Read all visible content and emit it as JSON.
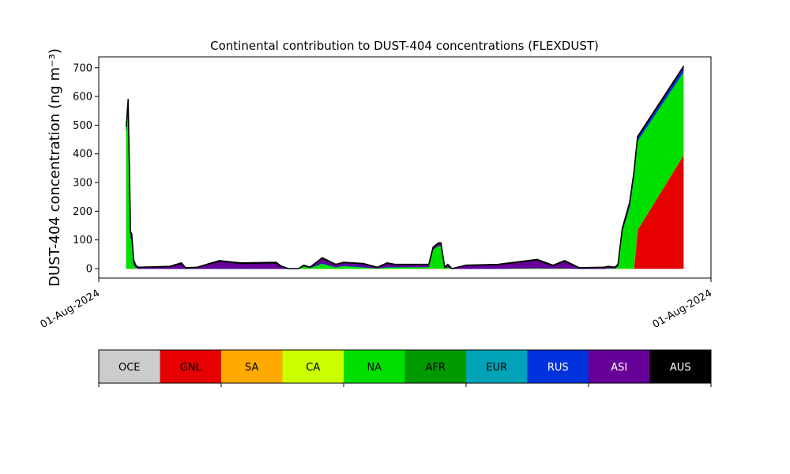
{
  "chart_data": {
    "type": "stacked_area",
    "title": "Continental contribution to DUST-404 concentrations (FLEXDUST)",
    "y_label": "DUST-404 concentration (ng m⁻³)",
    "xlim": [
      0,
      100
    ],
    "xticks": [
      {
        "value": 0,
        "label": "01-Aug-2024"
      },
      {
        "value": 100,
        "label": "01-Aug-2024"
      }
    ],
    "ylim": [
      -33,
      738
    ],
    "yticks": [
      0,
      100,
      200,
      300,
      400,
      500,
      600,
      700
    ],
    "x": [
      4.5,
      4.8,
      5.2,
      5.4,
      5.7,
      6.1,
      6.5,
      11.6,
      13.5,
      14.2,
      16.1,
      19.7,
      23.2,
      29.0,
      29.7,
      31.0,
      32.6,
      33.5,
      34.5,
      36.5,
      38.7,
      40.0,
      43.2,
      45.5,
      47.1,
      48.4,
      53.9,
      54.6,
      55.5,
      55.9,
      56.5,
      57.0,
      57.7,
      60.0,
      65.2,
      71.6,
      74.2,
      76.1,
      78.5,
      82.6,
      83.2,
      84.3,
      84.8,
      85.5,
      86.7,
      87.4,
      88.0,
      95.5
    ],
    "series": [
      {
        "name": "OCE",
        "color": "#cccccc",
        "values": [
          0,
          0,
          0,
          0,
          0,
          0,
          0,
          0,
          0,
          0,
          0,
          0,
          0,
          0,
          0,
          0,
          0,
          0,
          0,
          0,
          0,
          0,
          0,
          0,
          0,
          0,
          0,
          0,
          0,
          0,
          0,
          0,
          0,
          0,
          0,
          0,
          0,
          0,
          0,
          0,
          0,
          0,
          0,
          0,
          0,
          0,
          0,
          0
        ]
      },
      {
        "name": "GNL",
        "color": "#e60000",
        "values": [
          0,
          0,
          0,
          0,
          0,
          0,
          0,
          0,
          0,
          0,
          0,
          0,
          0,
          0,
          0,
          0,
          0,
          0,
          0,
          0,
          0,
          0,
          0,
          0,
          0,
          0,
          1,
          2,
          0,
          0,
          0,
          0,
          0,
          0,
          0,
          0,
          0,
          0,
          0,
          0,
          0,
          0,
          0,
          0,
          0,
          0,
          135,
          395
        ]
      },
      {
        "name": "SA",
        "color": "#ffaa00",
        "values": [
          0,
          0,
          0,
          0,
          0,
          0,
          0,
          0,
          0,
          0,
          0,
          0,
          0,
          0,
          0,
          0,
          0,
          0,
          0,
          0,
          0,
          0,
          0,
          0,
          0,
          0,
          0,
          0,
          0,
          0,
          0,
          0,
          0,
          0,
          0,
          0,
          0,
          0,
          0,
          0,
          0,
          0,
          0,
          0,
          0,
          0,
          0,
          0
        ]
      },
      {
        "name": "CA",
        "color": "#ccff00",
        "values": [
          0,
          0,
          0,
          0,
          0,
          0,
          0,
          0,
          0,
          0,
          0,
          0,
          0,
          0,
          0,
          0,
          0,
          0,
          0,
          0,
          0,
          0,
          0,
          0,
          0,
          0,
          0,
          0,
          0,
          0,
          0,
          0,
          0,
          0,
          0,
          0,
          0,
          0,
          0,
          0,
          0,
          0,
          0,
          0,
          0,
          0,
          0,
          0
        ]
      },
      {
        "name": "NA",
        "color": "#00e000",
        "values": [
          480,
          560,
          110,
          100,
          15,
          3,
          0,
          0,
          0,
          0,
          0,
          0,
          0,
          0,
          0,
          0,
          0,
          8,
          3,
          18,
          5,
          10,
          5,
          1,
          5,
          5,
          5,
          65,
          80,
          80,
          2,
          5,
          0,
          0,
          0,
          2,
          1,
          1,
          0,
          0,
          2,
          1,
          8,
          130,
          215,
          318,
          310,
          290
        ]
      },
      {
        "name": "AFR",
        "color": "#009900",
        "values": [
          0,
          0,
          0,
          0,
          0,
          0,
          0,
          0,
          0,
          0,
          0,
          0,
          0,
          0,
          0,
          0,
          0,
          0,
          0,
          0,
          0,
          0,
          0,
          0,
          0,
          0,
          0,
          0,
          0,
          0,
          0,
          0,
          0,
          0,
          0,
          0,
          0,
          0,
          0,
          0,
          0,
          0,
          0,
          0,
          0,
          0,
          0,
          0
        ]
      },
      {
        "name": "EUR",
        "color": "#00a3b8",
        "values": [
          0,
          0,
          0,
          0,
          0,
          0,
          0,
          0,
          0,
          0,
          0,
          0,
          0,
          0,
          0,
          0,
          0,
          0,
          0,
          0,
          0,
          0,
          0,
          0,
          0,
          0,
          0,
          0,
          0,
          0,
          0,
          0,
          0,
          0,
          0,
          0,
          0,
          0,
          0,
          0,
          0,
          0,
          0,
          0,
          0,
          0,
          0,
          0
        ]
      },
      {
        "name": "RUS",
        "color": "#0033dd",
        "values": [
          5,
          10,
          0,
          0,
          0,
          0,
          0,
          0,
          0,
          0,
          0,
          0,
          0,
          0,
          0,
          0,
          0,
          0,
          0,
          2,
          1,
          1,
          2,
          0,
          2,
          2,
          0,
          0,
          0,
          0,
          0,
          0,
          0,
          0,
          0,
          0,
          0,
          0,
          0,
          0,
          0,
          0,
          0,
          3,
          5,
          7,
          8,
          12
        ]
      },
      {
        "name": "ASI",
        "color": "#660099",
        "values": [
          10,
          15,
          15,
          15,
          12,
          6,
          4,
          7,
          18,
          2,
          4,
          26,
          18,
          20,
          8,
          0,
          0,
          3,
          1,
          16,
          8,
          10,
          10,
          3,
          12,
          7,
          8,
          6,
          8,
          8,
          2,
          9,
          0,
          11,
          14,
          28,
          10,
          25,
          2,
          4,
          5,
          3,
          5,
          5,
          8,
          8,
          5,
          6
        ]
      },
      {
        "name": "AUS",
        "color": "#000000",
        "values": [
          5,
          5,
          5,
          5,
          3,
          1,
          1,
          1,
          2,
          1,
          1,
          2,
          2,
          2,
          2,
          0,
          0,
          1,
          1,
          2,
          1,
          1,
          1,
          1,
          1,
          1,
          1,
          2,
          2,
          2,
          1,
          1,
          0,
          1,
          1,
          2,
          1,
          2,
          1,
          1,
          1,
          1,
          2,
          2,
          2,
          2,
          2,
          2
        ]
      }
    ]
  }
}
